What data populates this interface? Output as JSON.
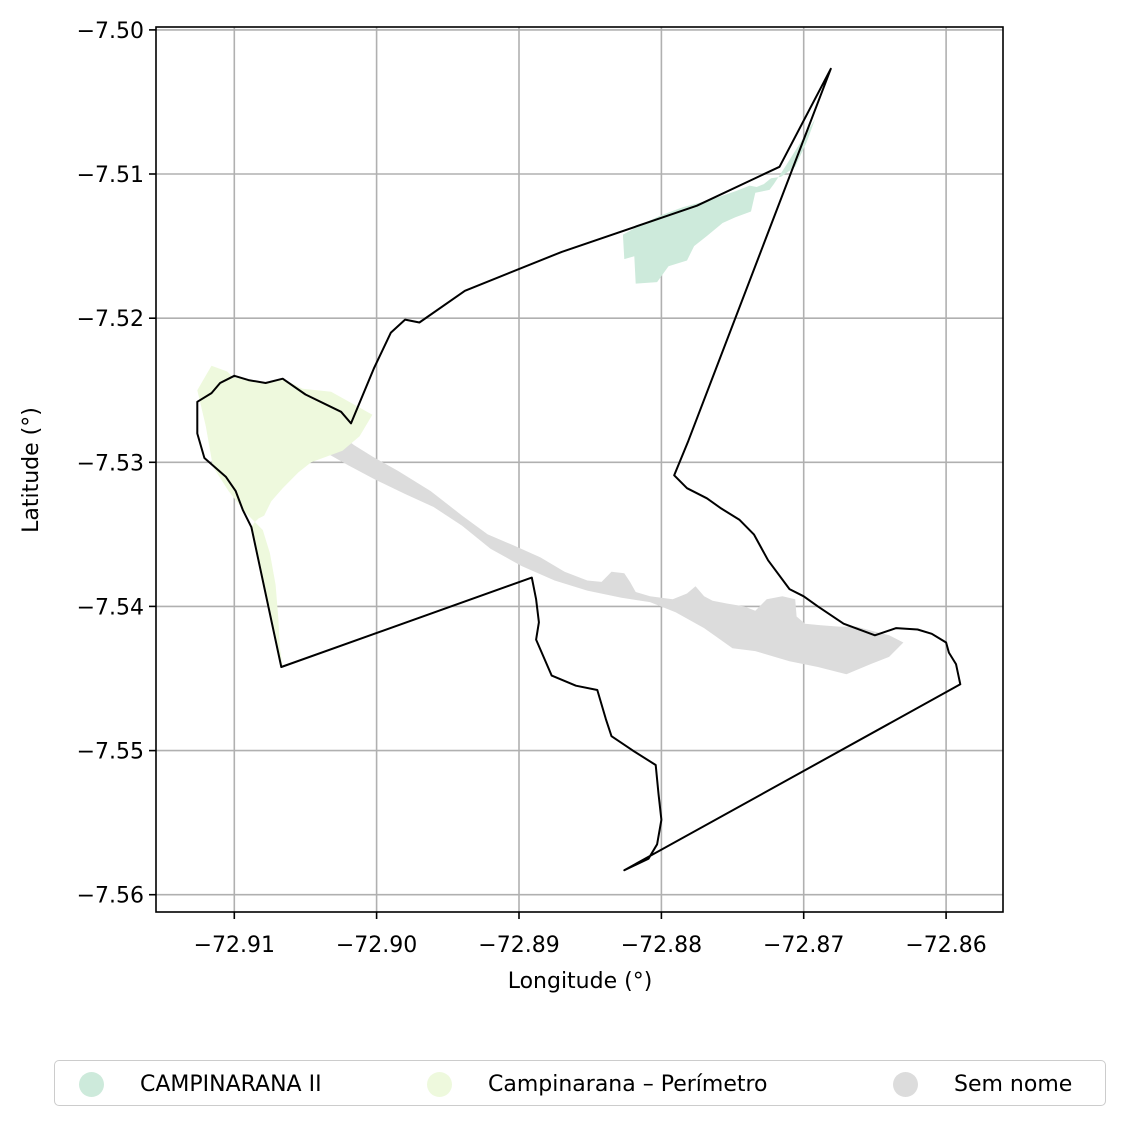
{
  "chart_data": {
    "type": "map",
    "xlabel": "Longitude (°)",
    "ylabel": "Latitude (°)",
    "xlim": [
      -72.9155,
      -72.856
    ],
    "ylim": [
      -7.5612,
      -7.4998
    ],
    "grid": true,
    "x_ticks": [
      -72.91,
      -72.9,
      -72.89,
      -72.88,
      -72.87,
      -72.86
    ],
    "x_tick_labels": [
      "−72.91",
      "−72.90",
      "−72.89",
      "−72.88",
      "−72.87",
      "−72.86"
    ],
    "y_ticks": [
      -7.5,
      -7.51,
      -7.52,
      -7.53,
      -7.54,
      -7.55,
      -7.56
    ],
    "y_tick_labels": [
      "−7.50",
      "−7.51",
      "−7.52",
      "−7.53",
      "−7.54",
      "−7.55",
      "−7.56"
    ],
    "legend_position": "bottom, below axes",
    "layers": [
      {
        "name": "CAMPINARANA II",
        "color": "#cdeadb",
        "polygon": [
          [
            -72.8827,
            -7.5142
          ],
          [
            -72.8814,
            -7.5135
          ],
          [
            -72.8801,
            -7.5129
          ],
          [
            -72.8785,
            -7.5123
          ],
          [
            -72.8766,
            -7.5118
          ],
          [
            -72.8748,
            -7.5112
          ],
          [
            -72.8738,
            -7.5108
          ],
          [
            -72.8733,
            -7.5109
          ],
          [
            -72.8728,
            -7.5107
          ],
          [
            -72.8723,
            -7.5103
          ],
          [
            -72.8716,
            -7.5102
          ],
          [
            -72.8706,
            -7.5095
          ],
          [
            -72.8698,
            -7.5078
          ],
          [
            -72.8692,
            -7.5062
          ],
          [
            -72.8713,
            -7.5095
          ],
          [
            -72.8721,
            -7.5107
          ],
          [
            -72.8724,
            -7.5111
          ],
          [
            -72.8734,
            -7.5113
          ],
          [
            -72.8737,
            -7.5126
          ],
          [
            -72.8748,
            -7.513
          ],
          [
            -72.8757,
            -7.5134
          ],
          [
            -72.8768,
            -7.5143
          ],
          [
            -72.8777,
            -7.515
          ],
          [
            -72.8782,
            -7.516
          ],
          [
            -72.8795,
            -7.5164
          ],
          [
            -72.8803,
            -7.5175
          ],
          [
            -72.8818,
            -7.5176
          ],
          [
            -72.8819,
            -7.5157
          ],
          [
            -72.8826,
            -7.5159
          ]
        ]
      },
      {
        "name": "Campinarana – Perímetro",
        "color": "#eef9dd",
        "polygon": [
          [
            -72.9067,
            -7.5442
          ],
          [
            -72.9088,
            -7.5345
          ],
          [
            -72.9086,
            -7.5342
          ],
          [
            -72.9083,
            -7.5339
          ],
          [
            -72.9079,
            -7.5337
          ],
          [
            -72.9077,
            -7.5333
          ],
          [
            -72.9074,
            -7.5327
          ],
          [
            -72.9066,
            -7.5318
          ],
          [
            -72.9055,
            -7.5307
          ],
          [
            -72.9046,
            -7.53
          ],
          [
            -72.9024,
            -7.5292
          ],
          [
            -72.9012,
            -7.5282
          ],
          [
            -72.9003,
            -7.5267
          ],
          [
            -72.9032,
            -7.5251
          ],
          [
            -72.9052,
            -7.5249
          ],
          [
            -72.9066,
            -7.5242
          ],
          [
            -72.9077,
            -7.5245
          ],
          [
            -72.909,
            -7.5243
          ],
          [
            -72.9101,
            -7.5241
          ],
          [
            -72.9105,
            -7.5237
          ],
          [
            -72.9116,
            -7.5233
          ],
          [
            -72.9126,
            -7.525
          ],
          [
            -72.912,
            -7.5275
          ],
          [
            -72.9115,
            -7.5303
          ],
          [
            -72.9104,
            -7.532
          ],
          [
            -72.9092,
            -7.5335
          ],
          [
            -72.908,
            -7.5347
          ],
          [
            -72.9075,
            -7.5363
          ],
          [
            -72.9071,
            -7.5385
          ],
          [
            -72.9069,
            -7.5409
          ],
          [
            -72.9068,
            -7.5428
          ],
          [
            -72.9066,
            -7.5442
          ]
        ]
      },
      {
        "name": "Sem nome",
        "color": "#dcdcdc",
        "polygon": [
          [
            -72.9064,
            -7.5272
          ],
          [
            -72.9053,
            -7.5282
          ],
          [
            -72.9038,
            -7.5292
          ],
          [
            -72.902,
            -7.5302
          ],
          [
            -72.9001,
            -7.5312
          ],
          [
            -72.898,
            -7.5322
          ],
          [
            -72.896,
            -7.5331
          ],
          [
            -72.894,
            -7.5344
          ],
          [
            -72.892,
            -7.536
          ],
          [
            -72.8898,
            -7.5372
          ],
          [
            -72.8875,
            -7.5382
          ],
          [
            -72.8852,
            -7.5389
          ],
          [
            -72.8828,
            -7.5394
          ],
          [
            -72.8808,
            -7.5397
          ],
          [
            -72.879,
            -7.5404
          ],
          [
            -72.877,
            -7.5415
          ],
          [
            -72.875,
            -7.5429
          ],
          [
            -72.8734,
            -7.5431
          ],
          [
            -72.871,
            -7.5438
          ],
          [
            -72.869,
            -7.5442
          ],
          [
            -72.867,
            -7.5447
          ],
          [
            -72.8653,
            -7.544
          ],
          [
            -72.864,
            -7.5435
          ],
          [
            -72.863,
            -7.5425
          ],
          [
            -72.864,
            -7.542
          ],
          [
            -72.8652,
            -7.5417
          ],
          [
            -72.8663,
            -7.5414
          ],
          [
            -72.8675,
            -7.5414
          ],
          [
            -72.8688,
            -7.5413
          ],
          [
            -72.8699,
            -7.5412
          ],
          [
            -72.8705,
            -7.5407
          ],
          [
            -72.8706,
            -7.5395
          ],
          [
            -72.8715,
            -7.5393
          ],
          [
            -72.8726,
            -7.5395
          ],
          [
            -72.8734,
            -7.5403
          ],
          [
            -72.8742,
            -7.54
          ],
          [
            -72.8754,
            -7.5398
          ],
          [
            -72.8764,
            -7.5396
          ],
          [
            -72.877,
            -7.5393
          ],
          [
            -72.8776,
            -7.5386
          ],
          [
            -72.8782,
            -7.5391
          ],
          [
            -72.8792,
            -7.5395
          ],
          [
            -72.8808,
            -7.5393
          ],
          [
            -72.8818,
            -7.539
          ],
          [
            -72.8822,
            -7.5383
          ],
          [
            -72.8826,
            -7.5377
          ],
          [
            -72.8835,
            -7.5376
          ],
          [
            -72.8842,
            -7.5383
          ],
          [
            -72.8852,
            -7.5382
          ],
          [
            -72.8868,
            -7.5376
          ],
          [
            -72.8885,
            -7.5366
          ],
          [
            -72.8903,
            -7.5358
          ],
          [
            -72.8922,
            -7.535
          ],
          [
            -72.894,
            -7.5337
          ],
          [
            -72.8962,
            -7.532
          ],
          [
            -72.8985,
            -7.5306
          ],
          [
            -72.9003,
            -7.5296
          ],
          [
            -72.9016,
            -7.5288
          ],
          [
            -72.9024,
            -7.5282
          ],
          [
            -72.9036,
            -7.528
          ],
          [
            -72.9048,
            -7.5276
          ],
          [
            -72.9058,
            -7.5271
          ]
        ]
      }
    ],
    "outline": [
      [
        -72.9067,
        -7.5442
      ],
      [
        -72.8891,
        -7.538
      ],
      [
        -72.8888,
        -7.5395
      ],
      [
        -72.8886,
        -7.5411
      ],
      [
        -72.8888,
        -7.5423
      ],
      [
        -72.8877,
        -7.5448
      ],
      [
        -72.886,
        -7.5455
      ],
      [
        -72.8845,
        -7.5458
      ],
      [
        -72.8839,
        -7.5478
      ],
      [
        -72.8835,
        -7.549
      ],
      [
        -72.882,
        -7.55
      ],
      [
        -72.8804,
        -7.551
      ],
      [
        -72.8802,
        -7.553
      ],
      [
        -72.88,
        -7.5548
      ],
      [
        -72.8803,
        -7.5565
      ],
      [
        -72.8809,
        -7.5575
      ],
      [
        -72.8826,
        -7.5583
      ],
      [
        -72.859,
        -7.5454
      ],
      [
        -72.8593,
        -7.544
      ],
      [
        -72.8598,
        -7.5432
      ],
      [
        -72.86,
        -7.5425
      ],
      [
        -72.861,
        -7.5419
      ],
      [
        -72.862,
        -7.5416
      ],
      [
        -72.8635,
        -7.5415
      ],
      [
        -72.865,
        -7.542
      ],
      [
        -72.8672,
        -7.5412
      ],
      [
        -72.869,
        -7.54
      ],
      [
        -72.87,
        -7.5393
      ],
      [
        -72.871,
        -7.5388
      ],
      [
        -72.8725,
        -7.5368
      ],
      [
        -72.8735,
        -7.535
      ],
      [
        -72.8745,
        -7.534
      ],
      [
        -72.8758,
        -7.5332
      ],
      [
        -72.8768,
        -7.5325
      ],
      [
        -72.8782,
        -7.5318
      ],
      [
        -72.8791,
        -7.5309
      ],
      [
        -72.8781,
        -7.5285
      ],
      [
        -72.8681,
        -7.5027
      ],
      [
        -72.8717,
        -7.5095
      ],
      [
        -72.8775,
        -7.5122
      ],
      [
        -72.887,
        -7.5154
      ],
      [
        -72.8938,
        -7.5181
      ],
      [
        -72.897,
        -7.5203
      ],
      [
        -72.898,
        -7.5201
      ],
      [
        -72.899,
        -7.521
      ],
      [
        -72.9002,
        -7.5235
      ],
      [
        -72.9018,
        -7.5273
      ],
      [
        -72.9025,
        -7.5265
      ],
      [
        -72.905,
        -7.5253
      ],
      [
        -72.9066,
        -7.5242
      ],
      [
        -72.9078,
        -7.5245
      ],
      [
        -72.909,
        -7.5243
      ],
      [
        -72.91,
        -7.524
      ],
      [
        -72.911,
        -7.5245
      ],
      [
        -72.9116,
        -7.5252
      ],
      [
        -72.9126,
        -7.5258
      ],
      [
        -72.9126,
        -7.528
      ],
      [
        -72.9121,
        -7.5297
      ],
      [
        -72.9106,
        -7.531
      ],
      [
        -72.9099,
        -7.532
      ],
      [
        -72.9094,
        -7.5333
      ],
      [
        -72.9088,
        -7.5345
      ],
      [
        -72.9067,
        -7.5442
      ]
    ]
  },
  "legend": {
    "items": [
      {
        "label": "CAMPINARANA II",
        "color": "#cdeadb"
      },
      {
        "label": "Campinarana – Perímetro",
        "color": "#eef9dd"
      },
      {
        "label": "Sem nome",
        "color": "#dcdcdc"
      }
    ]
  }
}
